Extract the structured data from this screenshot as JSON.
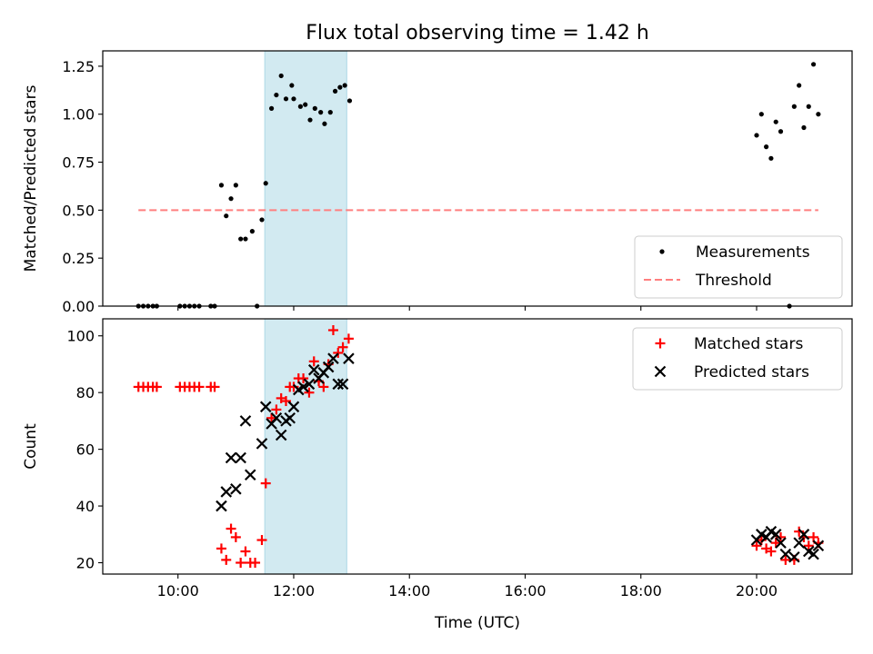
{
  "chart_data": {
    "title": "Flux total observing time = 1.42 h",
    "highlight_span": [
      "11:30",
      "12:55"
    ],
    "x_ticks": [
      "10:00",
      "12:00",
      "14:00",
      "16:00",
      "18:00",
      "20:00"
    ],
    "x_label": "Time (UTC)",
    "colors": {
      "measurement": "#000000",
      "threshold": "#ff7f7f",
      "matched": "#ff0000",
      "predicted": "#000000",
      "span": "#add8e6"
    },
    "panels": [
      {
        "type": "scatter",
        "ylabel": "Matched/Predicted stars",
        "ylim": [
          0,
          1.33
        ],
        "y_ticks": [
          "0.00",
          "0.25",
          "0.50",
          "0.75",
          "1.00",
          "1.25"
        ],
        "legend": "lower-right",
        "series": [
          {
            "name": "Measurements",
            "marker": "dot",
            "points": [
              [
                "09:19",
                0
              ],
              [
                "09:24",
                0
              ],
              [
                "09:29",
                0
              ],
              [
                "09:34",
                0
              ],
              [
                "09:38",
                0
              ],
              [
                "10:02",
                0
              ],
              [
                "10:07",
                0
              ],
              [
                "10:12",
                0
              ],
              [
                "10:17",
                0
              ],
              [
                "10:22",
                0
              ],
              [
                "10:34",
                0
              ],
              [
                "10:38",
                0
              ],
              [
                "10:45",
                0.63
              ],
              [
                "10:50",
                0.47
              ],
              [
                "10:55",
                0.56
              ],
              [
                "11:00",
                0.63
              ],
              [
                "11:05",
                0.35
              ],
              [
                "11:10",
                0.35
              ],
              [
                "11:17",
                0.39
              ],
              [
                "11:22",
                0
              ],
              [
                "11:27",
                0.45
              ],
              [
                "11:31",
                0.64
              ],
              [
                "11:37",
                1.03
              ],
              [
                "11:42",
                1.1
              ],
              [
                "11:47",
                1.2
              ],
              [
                "11:52",
                1.08
              ],
              [
                "11:58",
                1.15
              ],
              [
                "12:00",
                1.08
              ],
              [
                "12:07",
                1.04
              ],
              [
                "12:12",
                1.05
              ],
              [
                "12:17",
                0.97
              ],
              [
                "12:22",
                1.03
              ],
              [
                "12:28",
                1.01
              ],
              [
                "12:32",
                0.95
              ],
              [
                "12:38",
                1.01
              ],
              [
                "12:43",
                1.12
              ],
              [
                "12:48",
                1.14
              ],
              [
                "12:53",
                1.15
              ],
              [
                "12:58",
                1.07
              ],
              [
                "20:00",
                0.89
              ],
              [
                "20:05",
                1.0
              ],
              [
                "20:10",
                0.83
              ],
              [
                "20:15",
                0.77
              ],
              [
                "20:20",
                0.96
              ],
              [
                "20:25",
                0.91
              ],
              [
                "20:34",
                0
              ],
              [
                "20:39",
                1.04
              ],
              [
                "20:44",
                1.15
              ],
              [
                "20:49",
                0.93
              ],
              [
                "20:54",
                1.04
              ],
              [
                "20:59",
                1.26
              ],
              [
                "21:04",
                1.0
              ]
            ]
          },
          {
            "name": "Threshold",
            "marker": "dashed-line",
            "points": [
              [
                "09:19",
                0.5
              ],
              [
                "21:04",
                0.5
              ]
            ]
          }
        ]
      },
      {
        "type": "scatter",
        "ylabel": "Count",
        "ylim": [
          16,
          106
        ],
        "y_ticks": [
          "20",
          "40",
          "60",
          "80",
          "100"
        ],
        "legend": "upper-right",
        "series": [
          {
            "name": "Matched stars",
            "marker": "plus",
            "points": [
              [
                "09:19",
                82
              ],
              [
                "09:24",
                82
              ],
              [
                "09:29",
                82
              ],
              [
                "09:34",
                82
              ],
              [
                "09:38",
                82
              ],
              [
                "10:02",
                82
              ],
              [
                "10:07",
                82
              ],
              [
                "10:12",
                82
              ],
              [
                "10:17",
                82
              ],
              [
                "10:22",
                82
              ],
              [
                "10:34",
                82
              ],
              [
                "10:38",
                82
              ],
              [
                "10:45",
                25
              ],
              [
                "10:50",
                21
              ],
              [
                "10:55",
                32
              ],
              [
                "11:00",
                29
              ],
              [
                "11:05",
                20
              ],
              [
                "11:10",
                24
              ],
              [
                "11:15",
                20
              ],
              [
                "11:20",
                20
              ],
              [
                "11:27",
                28
              ],
              [
                "11:31",
                48
              ],
              [
                "11:37",
                71
              ],
              [
                "11:42",
                74
              ],
              [
                "11:47",
                78
              ],
              [
                "11:52",
                77
              ],
              [
                "11:56",
                82
              ],
              [
                "12:00",
                82
              ],
              [
                "12:05",
                85
              ],
              [
                "12:10",
                85
              ],
              [
                "12:16",
                80
              ],
              [
                "12:21",
                91
              ],
              [
                "12:26",
                84
              ],
              [
                "12:31",
                82
              ],
              [
                "12:36",
                90
              ],
              [
                "12:41",
                102
              ],
              [
                "12:46",
                94
              ],
              [
                "12:51",
                96
              ],
              [
                "12:57",
                99
              ],
              [
                "20:00",
                26
              ],
              [
                "20:05",
                28
              ],
              [
                "20:10",
                25
              ],
              [
                "20:15",
                24
              ],
              [
                "20:20",
                27
              ],
              [
                "20:25",
                29
              ],
              [
                "20:30",
                21
              ],
              [
                "20:39",
                21
              ],
              [
                "20:44",
                31
              ],
              [
                "20:49",
                29
              ],
              [
                "20:54",
                26
              ],
              [
                "20:59",
                29
              ],
              [
                "21:04",
                27
              ]
            ]
          },
          {
            "name": "Predicted stars",
            "marker": "x",
            "points": [
              [
                "10:45",
                40
              ],
              [
                "10:50",
                45
              ],
              [
                "10:55",
                57
              ],
              [
                "11:00",
                46
              ],
              [
                "11:05",
                57
              ],
              [
                "11:10",
                70
              ],
              [
                "11:15",
                51
              ],
              [
                "11:27",
                62
              ],
              [
                "11:31",
                75
              ],
              [
                "11:37",
                69
              ],
              [
                "11:42",
                71
              ],
              [
                "11:47",
                65
              ],
              [
                "11:52",
                70
              ],
              [
                "11:56",
                71
              ],
              [
                "12:00",
                75
              ],
              [
                "12:05",
                81
              ],
              [
                "12:10",
                82
              ],
              [
                "12:16",
                83
              ],
              [
                "12:21",
                88
              ],
              [
                "12:26",
                85
              ],
              [
                "12:31",
                87
              ],
              [
                "12:36",
                89
              ],
              [
                "12:41",
                92
              ],
              [
                "12:46",
                83
              ],
              [
                "12:51",
                83
              ],
              [
                "12:57",
                92
              ],
              [
                "20:00",
                28
              ],
              [
                "20:05",
                30
              ],
              [
                "20:10",
                29
              ],
              [
                "20:15",
                31
              ],
              [
                "20:20",
                30
              ],
              [
                "20:25",
                27
              ],
              [
                "20:30",
                23
              ],
              [
                "20:39",
                22
              ],
              [
                "20:44",
                27
              ],
              [
                "20:49",
                30
              ],
              [
                "20:54",
                24
              ],
              [
                "20:59",
                23
              ],
              [
                "21:04",
                26
              ]
            ]
          }
        ]
      }
    ]
  }
}
